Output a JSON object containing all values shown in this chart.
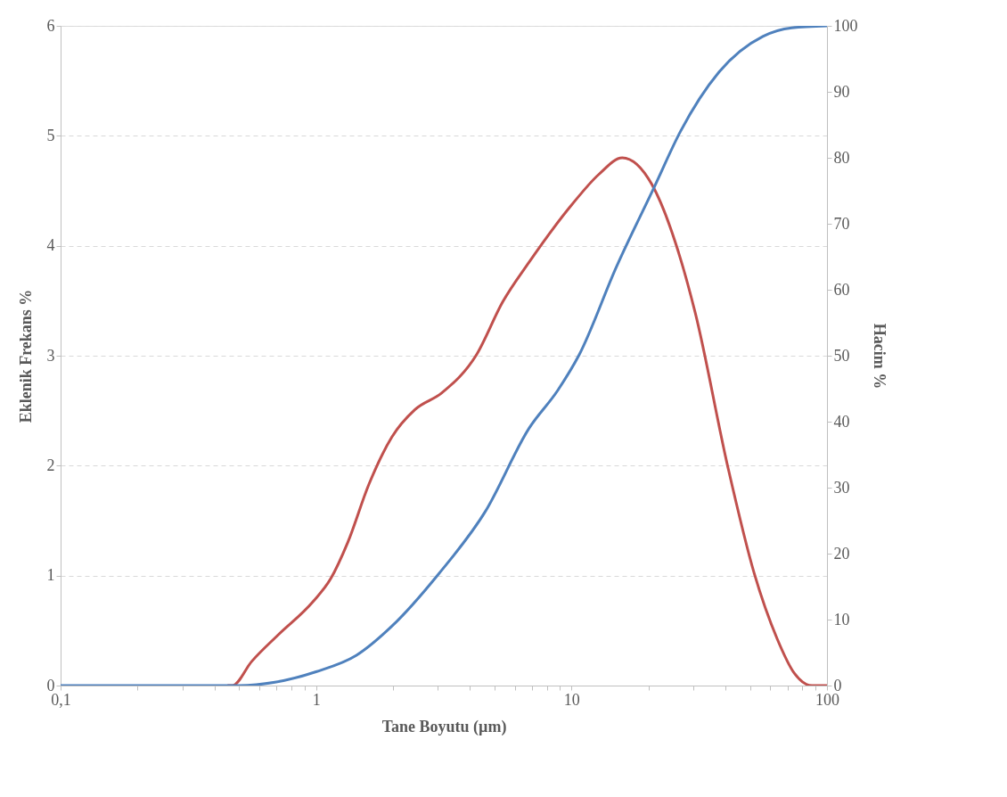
{
  "chart_data": {
    "type": "line",
    "xlabel": "Tane Boyutu (µm)",
    "ylabel": "Eklenik Frekans %",
    "y2label": "Hacim %",
    "log": "x",
    "grid": "y",
    "xlim": [
      0.1,
      100
    ],
    "xticks": [
      {
        "value": 0.1,
        "label": "0,1"
      },
      {
        "value": 0.2,
        "label": null
      },
      {
        "value": 0.3,
        "label": null
      },
      {
        "value": 0.4,
        "label": null
      },
      {
        "value": 0.5,
        "label": null
      },
      {
        "value": 0.6,
        "label": null
      },
      {
        "value": 0.7,
        "label": null
      },
      {
        "value": 0.8,
        "label": null
      },
      {
        "value": 0.9,
        "label": null
      },
      1,
      {
        "value": 2,
        "label": null
      },
      {
        "value": 3,
        "label": null
      },
      {
        "value": 4,
        "label": null
      },
      {
        "value": 5,
        "label": null
      },
      {
        "value": 6,
        "label": null
      },
      {
        "value": 7,
        "label": null
      },
      {
        "value": 8,
        "label": null
      },
      {
        "value": 9,
        "label": null
      },
      10,
      {
        "value": 20,
        "label": null
      },
      {
        "value": 30,
        "label": null
      },
      {
        "value": 40,
        "label": null
      },
      {
        "value": 50,
        "label": null
      },
      {
        "value": 60,
        "label": null
      },
      {
        "value": 70,
        "label": null
      },
      {
        "value": 80,
        "label": null
      },
      {
        "value": 90,
        "label": null
      },
      100
    ],
    "ylim": [
      0,
      6
    ],
    "yticks": [
      0,
      1,
      2,
      3,
      4,
      5,
      6
    ],
    "y2lim": [
      0,
      100
    ],
    "y2ticks": [
      0,
      10,
      20,
      30,
      40,
      50,
      60,
      70,
      80,
      90,
      100
    ],
    "series": [
      {
        "color": "#c0504d",
        "x": [
          0.45,
          0.47,
          0.56,
          0.71,
          0.97,
          1.14,
          1.33,
          1.61,
          1.98,
          2.44,
          3.1,
          4.25,
          5.38,
          6.82,
          10,
          12.8,
          15.8,
          20.6,
          25.5,
          30.5,
          40.9,
          51.9,
          63.7,
          74.6,
          87.3,
          100
        ],
        "values": [
          0,
          0,
          0.22,
          0.46,
          0.76,
          0.97,
          1.3,
          1.83,
          2.26,
          2.51,
          2.66,
          3.01,
          3.49,
          3.85,
          4.37,
          4.65,
          4.8,
          4.56,
          4.03,
          3.39,
          1.99,
          1.02,
          0.43,
          0.11,
          0,
          0
        ]
      },
      {
        "color": "#4f81bd",
        "axis": "y2",
        "x": [
          0.1,
          0.2,
          0.3,
          0.45,
          0.5,
          0.69,
          1.0,
          1.44,
          1.98,
          3.03,
          4.6,
          6.82,
          8.85,
          10.7,
          15.0,
          21.1,
          26.7,
          37.8,
          56.1,
          72.8,
          100
        ],
        "values": [
          0,
          0,
          0,
          0,
          0,
          0.5,
          2.1,
          4.6,
          9.0,
          17.0,
          26.4,
          39.0,
          44.8,
          50.1,
          63.5,
          75.6,
          84.0,
          93.0,
          98.4,
          99.7,
          100
        ]
      }
    ]
  }
}
